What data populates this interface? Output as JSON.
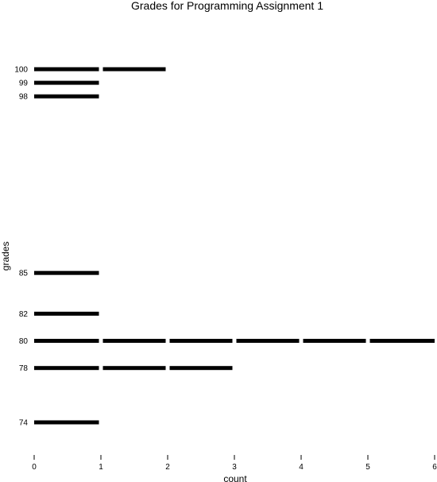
{
  "chart_data": {
    "type": "bar",
    "orientation": "horizontal",
    "title": "Grades for Programming Assignment 1",
    "xlabel": "count",
    "ylabel": "grades",
    "categories": [
      74,
      78,
      80,
      82,
      85,
      98,
      99,
      100
    ],
    "values": [
      1,
      3,
      6,
      1,
      1,
      1,
      1,
      2
    ],
    "xlim": [
      0,
      6
    ],
    "ylim": [
      71,
      105
    ],
    "x_ticks": [
      0,
      1,
      2,
      3,
      4,
      5,
      6
    ],
    "grid": false,
    "legend": "none",
    "bar_color": "#000000"
  }
}
